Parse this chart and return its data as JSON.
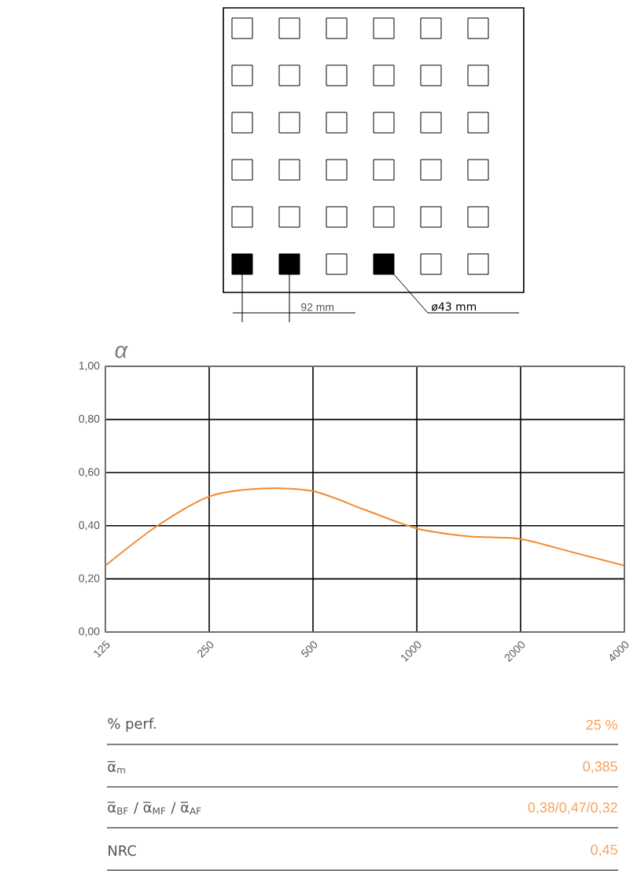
{
  "chart_data": {
    "type": "line",
    "ylabel": "α",
    "x": [
      125,
      177,
      250,
      353,
      500,
      707,
      1000,
      1414,
      2000,
      2828,
      4000
    ],
    "series": [
      {
        "color": "#f28a30",
        "values": [
          0.25,
          0.4,
          0.51,
          0.54,
          0.53,
          0.46,
          0.39,
          0.36,
          0.35,
          0.3,
          0.25
        ]
      }
    ],
    "xlim": [
      125,
      4000
    ],
    "ylim": [
      0,
      1
    ],
    "xticks": [
      125,
      250,
      500,
      1000,
      2000,
      4000
    ],
    "yticks": [
      {
        "value": 0,
        "label": "0,00"
      },
      {
        "value": 0.2,
        "label": "0,20"
      },
      {
        "value": 0.4,
        "label": "0,40"
      },
      {
        "value": 0.6,
        "label": "0,60"
      },
      {
        "value": 0.8,
        "label": "0,80"
      },
      {
        "value": 1,
        "label": "1,00"
      }
    ],
    "log": "x",
    "grid": true,
    "marker": "none",
    "annotations": [
      "92 mm",
      "ø43 mm",
      "% perf.",
      "25 %",
      "α̅$_{m}$",
      "0,385",
      "α̅$_{BF}$ / α̅$_{MF}$ / α̅$_{AF}$",
      "0,38/0,47/0,32",
      "NRC",
      "0,45"
    ]
  }
}
